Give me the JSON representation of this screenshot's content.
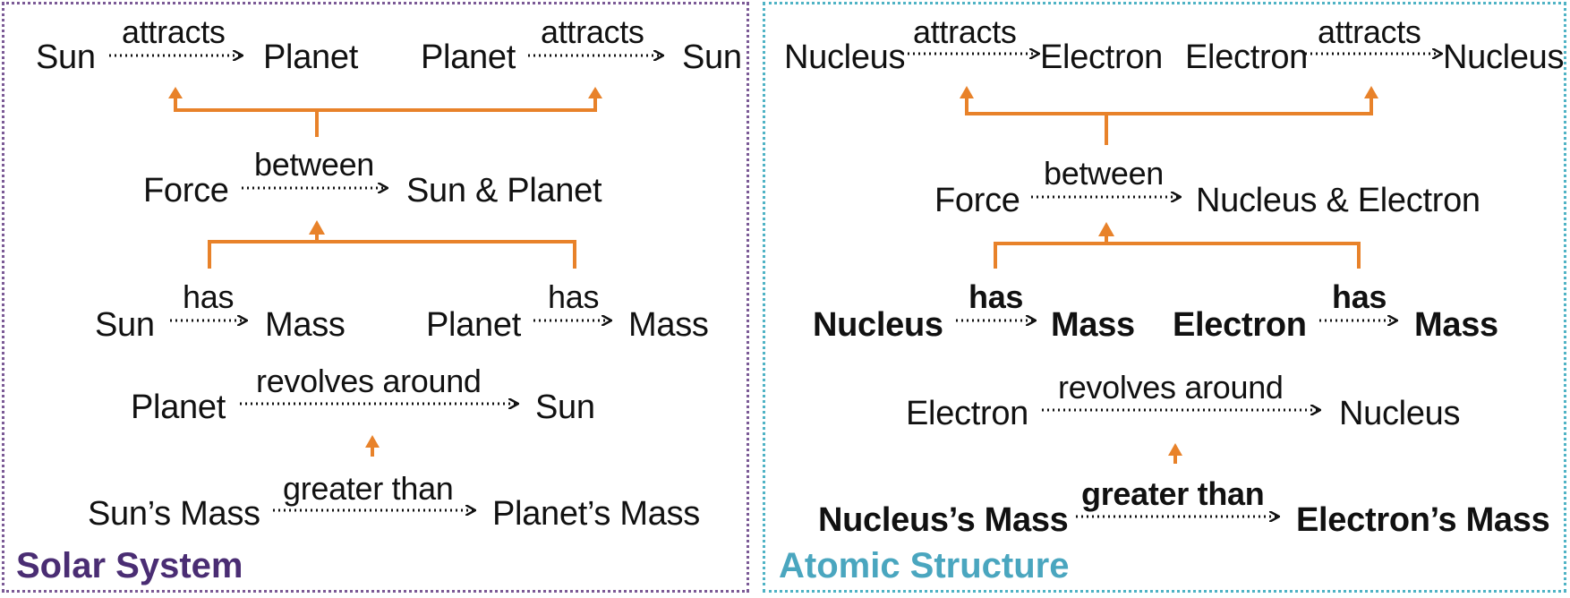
{
  "colors": {
    "accent_orange": "#e8822a",
    "solar_title": "#4a2d73",
    "atomic_title": "#4aa6bf"
  },
  "solar": {
    "title": "Solar System",
    "row1": {
      "a_subj": "Sun",
      "a_rel": "attracts",
      "a_obj": "Planet",
      "b_subj": "Planet",
      "b_rel": "attracts",
      "b_obj": "Sun"
    },
    "row2": {
      "subj": "Force",
      "rel": "between",
      "obj": "Sun & Planet"
    },
    "row3": {
      "a_subj": "Sun",
      "a_rel": "has",
      "a_obj": "Mass",
      "b_subj": "Planet",
      "b_rel": "has",
      "b_obj": "Mass"
    },
    "row4": {
      "subj": "Planet",
      "rel": "revolves around",
      "obj": "Sun"
    },
    "row5": {
      "subj": "Sun’s Mass",
      "rel": "greater than",
      "obj": "Planet’s Mass"
    }
  },
  "atomic": {
    "title": "Atomic Structure",
    "row1": {
      "a_subj": "Nucleus",
      "a_rel": "attracts",
      "a_obj": "Electron",
      "b_subj": "Electron",
      "b_rel": "attracts",
      "b_obj": "Nucleus"
    },
    "row2": {
      "subj": "Force",
      "rel": "between",
      "obj": "Nucleus & Electron"
    },
    "row3": {
      "a_subj": "Nucleus",
      "a_rel": "has",
      "a_obj": "Mass",
      "b_subj": "Electron",
      "b_rel": "has",
      "b_obj": "Mass"
    },
    "row4": {
      "subj": "Electron",
      "rel": "revolves around",
      "obj": "Nucleus"
    },
    "row5": {
      "subj": "Nucleus’s Mass",
      "rel": "greater than",
      "obj": "Electron’s Mass"
    }
  }
}
